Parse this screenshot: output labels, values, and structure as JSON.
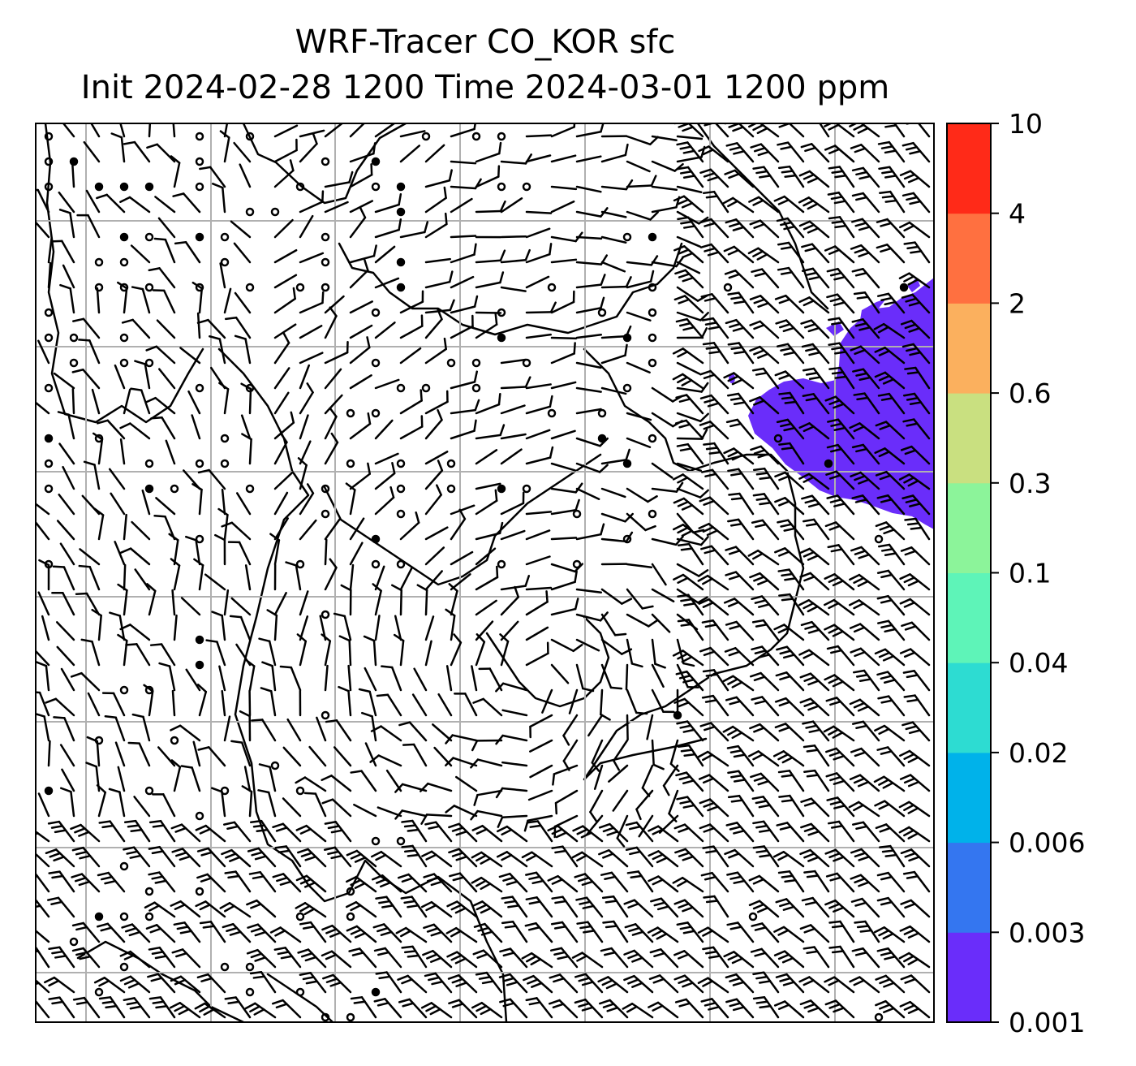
{
  "title_line1": "WRF-Tracer CO_KOR sfc",
  "title_line2": "Init 2024-02-28 1200 Time 2024-03-01 1200 ppm",
  "chart_data": {
    "type": "heatmap",
    "description": "Surface CO tracer concentration (filled contours) with wind barbs over a regional map",
    "units": "ppm",
    "colorbar": {
      "levels": [
        "0.001",
        "0.003",
        "0.006",
        "0.02",
        "0.04",
        "0.1",
        "0.3",
        "0.6",
        "2",
        "4",
        "10"
      ],
      "colors": [
        "#6a2dfa",
        "#3476f0",
        "#00b2ea",
        "#2ddcd2",
        "#5ef4b8",
        "#8cf49a",
        "#c9e080",
        "#fbb05e",
        "#ff7040",
        "#ff2a18"
      ]
    },
    "filled_region": {
      "level_band": [
        "0.001",
        "0.003"
      ],
      "color": "#6a2dfa",
      "location": "east-northeast edge of domain"
    },
    "grid": true,
    "wind_barbs": true,
    "coastlines": true
  }
}
